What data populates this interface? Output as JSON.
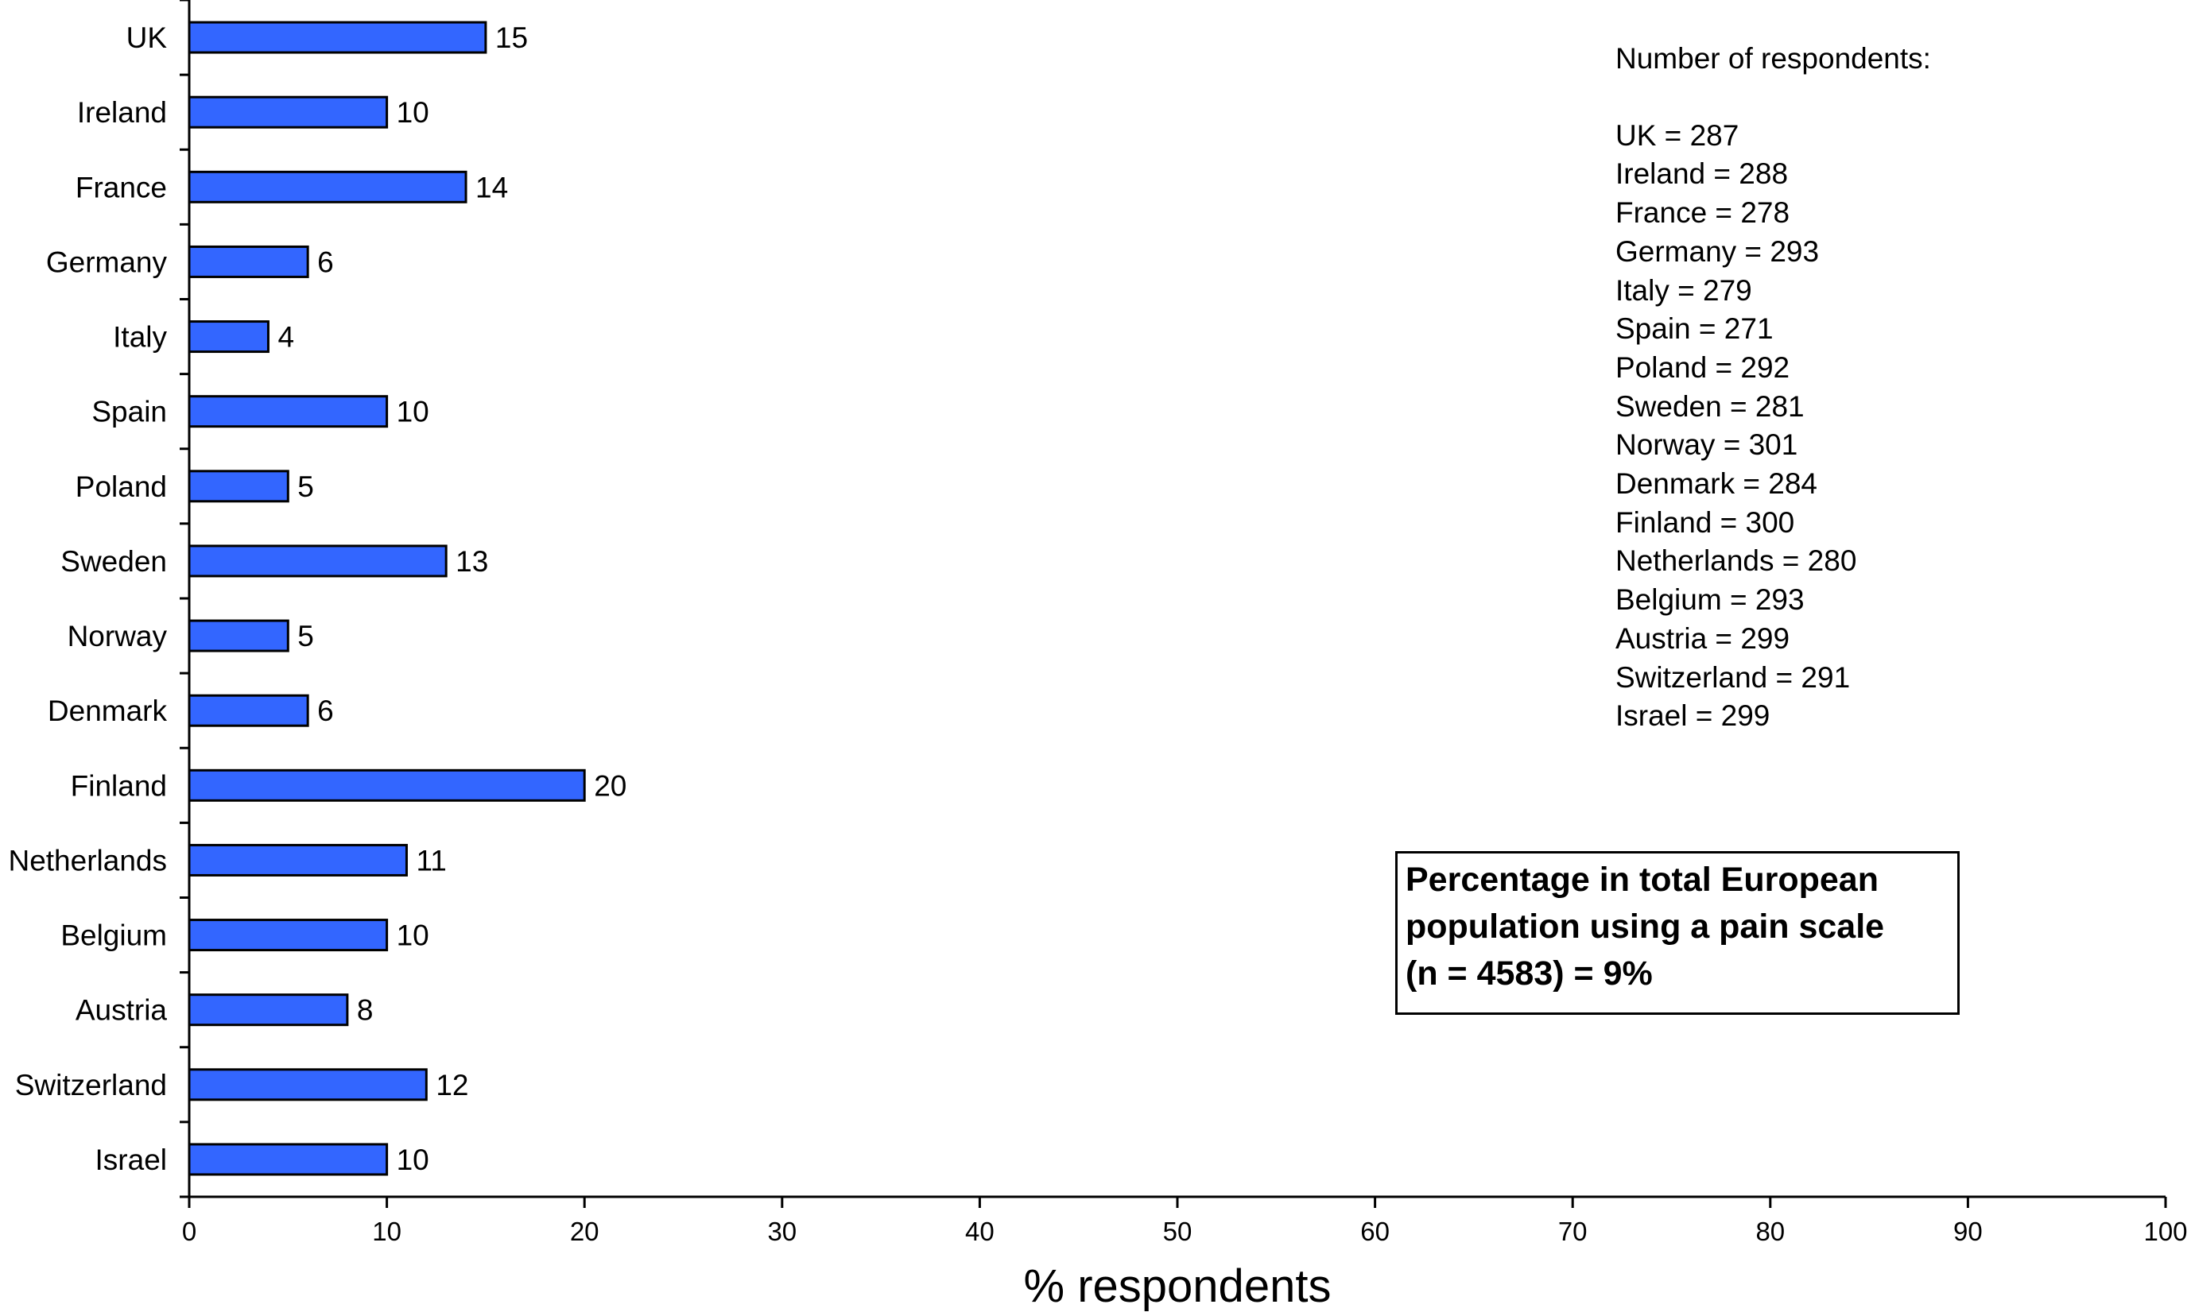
{
  "chart_data": {
    "type": "bar",
    "orientation": "horizontal",
    "categories": [
      "UK",
      "Ireland",
      "France",
      "Germany",
      "Italy",
      "Spain",
      "Poland",
      "Sweden",
      "Norway",
      "Denmark",
      "Finland",
      "Netherlands",
      "Belgium",
      "Austria",
      "Switzerland",
      "Israel"
    ],
    "values": [
      15,
      10,
      14,
      6,
      4,
      10,
      5,
      13,
      5,
      6,
      20,
      11,
      10,
      8,
      12,
      10
    ],
    "xlabel": "% respondents",
    "ylabel": "",
    "xlim": [
      0,
      100
    ],
    "xticks": [
      0,
      10,
      20,
      30,
      40,
      50,
      60,
      70,
      80,
      90,
      100
    ],
    "bar_color": "#3366ff",
    "grid": false,
    "data_labels": true
  },
  "respondents_note": {
    "heading": "Number of respondents:",
    "lines": [
      "UK = 287",
      "Ireland = 288",
      "France = 278",
      "Germany = 293",
      "Italy = 279",
      "Spain = 271",
      "Poland = 292",
      "Sweden = 281",
      "Norway = 301",
      "Denmark = 284",
      "Finland = 300",
      "Netherlands = 280",
      "Belgium = 293",
      "Austria = 299",
      "Switzerland = 291",
      "Israel = 299"
    ]
  },
  "callout": {
    "line1": "Percentage in total European",
    "line2": "population using a pain scale",
    "line3": "(n = 4583) = 9%"
  }
}
